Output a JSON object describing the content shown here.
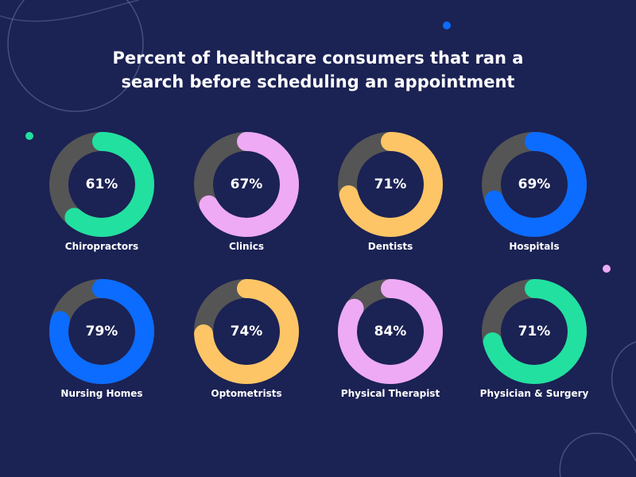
{
  "title": {
    "line1": "Percent of healthcare consumers that ran a",
    "line2": "search before scheduling an appointment"
  },
  "colors": {
    "background": "#1b2254",
    "track": "#555555",
    "green": "#22e0a0",
    "pink": "#eeaaf4",
    "yellow": "#fec566",
    "blue": "#0b6cff"
  },
  "chart_data": {
    "type": "pie",
    "subtype": "donut",
    "title": "Percent of healthcare consumers that ran a search before scheduling an appointment",
    "unit": "%",
    "items": [
      {
        "label": "Chiropractors",
        "value": 61,
        "display": "61%",
        "color": "#22e0a0"
      },
      {
        "label": "Clinics",
        "value": 67,
        "display": "67%",
        "color": "#eeaaf4"
      },
      {
        "label": "Dentists",
        "value": 71,
        "display": "71%",
        "color": "#fec566"
      },
      {
        "label": "Hospitals",
        "value": 69,
        "display": "69%",
        "color": "#0b6cff"
      },
      {
        "label": "Nursing Homes",
        "value": 79,
        "display": "79%",
        "color": "#0b6cff"
      },
      {
        "label": "Optometrists",
        "value": 74,
        "display": "74%",
        "color": "#fec566"
      },
      {
        "label": "Physical Therapist",
        "value": 84,
        "display": "84%",
        "color": "#eeaaf4"
      },
      {
        "label": "Physician & Surgery",
        "value": 71,
        "display": "71%",
        "color": "#22e0a0"
      }
    ]
  }
}
